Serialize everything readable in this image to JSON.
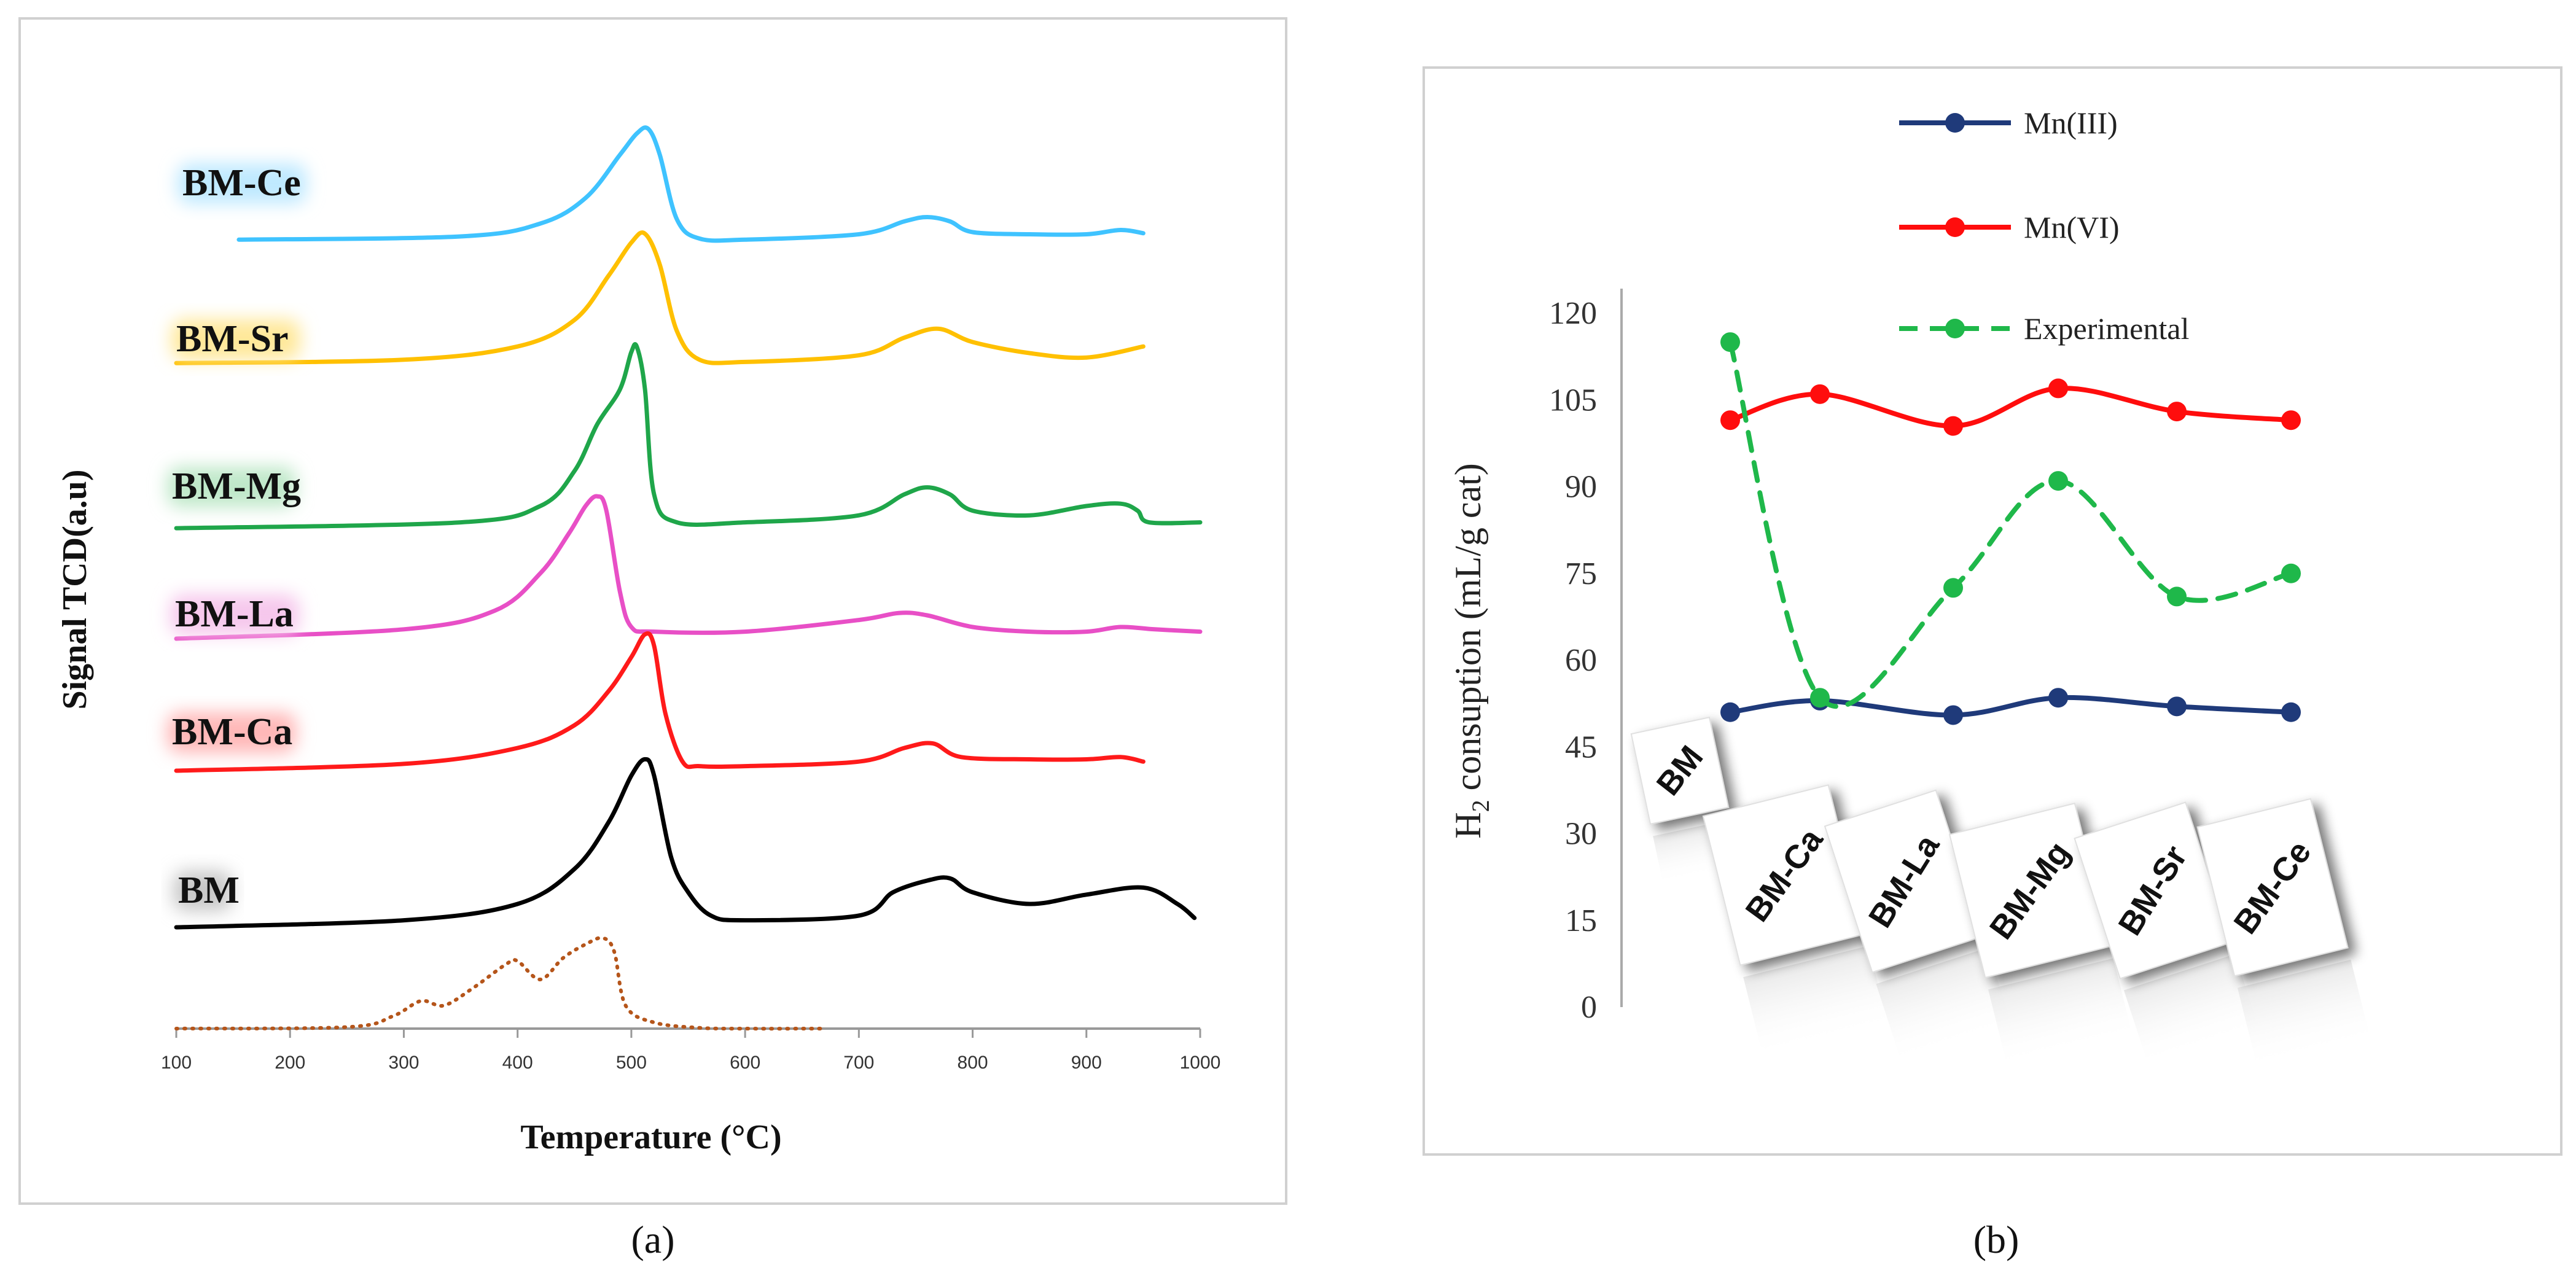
{
  "panel_a": {
    "caption": "(a)",
    "chart_data": {
      "type": "line",
      "title": "",
      "xlabel": "Temperature (°C)",
      "ylabel": "Signal TCD(a.u)",
      "xlim": [
        100,
        1000
      ],
      "xticks": [
        "100",
        "200",
        "300",
        "400",
        "500",
        "600",
        "700",
        "800",
        "900",
        "1000"
      ],
      "series": [
        {
          "name": "BM-Ce",
          "color": "#3fc3ff",
          "label_bg": "#bfe9ff",
          "x": [
            155,
            350,
            420,
            460,
            490,
            505,
            515,
            525,
            540,
            560,
            600,
            700,
            740,
            760,
            780,
            800,
            850,
            900,
            930,
            950
          ],
          "y": [
            0.05,
            0.2,
            0.8,
            2.0,
            4.0,
            5.0,
            5.2,
            4.0,
            1.0,
            0.1,
            0.05,
            0.3,
            0.9,
            1.1,
            0.9,
            0.4,
            0.3,
            0.3,
            0.5,
            0.35
          ]
        },
        {
          "name": "BM-Sr",
          "color": "#ffc000",
          "label_bg": "#ffe89a",
          "x": [
            100,
            300,
            400,
            450,
            480,
            500,
            512,
            525,
            540,
            560,
            600,
            700,
            740,
            770,
            800,
            850,
            900,
            950
          ],
          "y": [
            0.05,
            0.2,
            0.8,
            2.0,
            4.0,
            5.5,
            5.9,
            4.5,
            1.5,
            0.2,
            0.1,
            0.4,
            1.2,
            1.6,
            1.0,
            0.5,
            0.3,
            0.8
          ]
        },
        {
          "name": "BM-Mg",
          "color": "#1fa64a",
          "label_bg": "#bfe8c9",
          "x": [
            100,
            350,
            420,
            450,
            470,
            490,
            500,
            505,
            512,
            520,
            540,
            600,
            700,
            740,
            760,
            780,
            800,
            850,
            900,
            930,
            945,
            955,
            1000
          ],
          "y": [
            0.05,
            0.3,
            1.0,
            2.5,
            4.5,
            6.0,
            7.6,
            7.8,
            6.0,
            1.5,
            0.3,
            0.3,
            0.6,
            1.5,
            1.8,
            1.5,
            0.8,
            0.6,
            1.0,
            1.1,
            0.8,
            0.3,
            0.3
          ]
        },
        {
          "name": "BM-La",
          "color": "#e84fc6",
          "label_bg": "#f6c7ec",
          "x": [
            100,
            300,
            380,
            420,
            445,
            460,
            470,
            478,
            490,
            500,
            520,
            600,
            700,
            735,
            760,
            800,
            850,
            900,
            930,
            960,
            1000
          ],
          "y": [
            0.0,
            0.4,
            1.2,
            2.8,
            4.5,
            5.7,
            6.1,
            5.5,
            2.0,
            0.5,
            0.3,
            0.3,
            0.8,
            1.1,
            1.0,
            0.5,
            0.3,
            0.3,
            0.5,
            0.4,
            0.3
          ]
        },
        {
          "name": "BM-Ca",
          "color": "#ff1a1a",
          "label_bg": "#ffb8b8",
          "x": [
            100,
            300,
            400,
            450,
            480,
            500,
            512,
            520,
            530,
            545,
            560,
            600,
            700,
            740,
            765,
            790,
            850,
            900,
            930,
            950
          ],
          "y": [
            0.0,
            0.3,
            1.0,
            2.0,
            3.5,
            5.0,
            6.0,
            5.5,
            2.5,
            0.4,
            0.2,
            0.2,
            0.4,
            1.0,
            1.2,
            0.6,
            0.5,
            0.5,
            0.6,
            0.4
          ]
        },
        {
          "name": "BM",
          "color": "#000000",
          "label_bg": "#c8c8c8",
          "x": [
            100,
            300,
            400,
            450,
            480,
            500,
            512,
            520,
            535,
            550,
            570,
            600,
            700,
            730,
            760,
            780,
            800,
            850,
            900,
            950,
            980,
            995
          ],
          "y": [
            0.0,
            0.3,
            1.0,
            2.5,
            4.5,
            6.5,
            7.2,
            6.5,
            3.0,
            1.5,
            0.5,
            0.3,
            0.5,
            1.5,
            2.0,
            2.1,
            1.5,
            1.0,
            1.4,
            1.7,
            1.0,
            0.4
          ]
        },
        {
          "name": "",
          "color": "#b5551a",
          "dotted": true,
          "x": [
            100,
            250,
            290,
            315,
            335,
            360,
            390,
            400,
            420,
            440,
            460,
            475,
            485,
            495,
            520,
            560,
            600,
            670
          ],
          "y": [
            0.0,
            0.1,
            0.8,
            1.8,
            1.5,
            2.6,
            4.2,
            4.4,
            3.2,
            4.6,
            5.5,
            5.9,
            5.0,
            1.5,
            0.4,
            0.05,
            0.0,
            0.0
          ]
        }
      ]
    }
  },
  "panel_b": {
    "caption": "(b)",
    "chart_data": {
      "type": "line",
      "title": "",
      "xlabel": "",
      "ylabel_main": "H",
      "ylabel_sub": "2",
      "ylabel_rest": " consuption (mL/g cat)",
      "ylim": [
        0,
        120
      ],
      "yticks": [
        "120",
        "105",
        "90",
        "75",
        "60",
        "45",
        "30",
        "15",
        "0"
      ],
      "categories": [
        "BM",
        "BM-Ca",
        "BM-La",
        "BM-Mg",
        "BM-Sr",
        "BM-Ce"
      ],
      "series": [
        {
          "name": "Mn(III)",
          "color": "#1f3a7a",
          "values": [
            51,
            53,
            50.5,
            53.5,
            52,
            51
          ]
        },
        {
          "name": "Mn(VI)",
          "color": "#ff0d0d",
          "values": [
            101.5,
            106,
            100.5,
            107,
            103,
            101.5
          ]
        },
        {
          "name": "Experimental",
          "color": "#1fb84a",
          "dashed": true,
          "values": [
            115,
            53.5,
            72.5,
            91,
            71,
            75
          ]
        }
      ]
    }
  }
}
